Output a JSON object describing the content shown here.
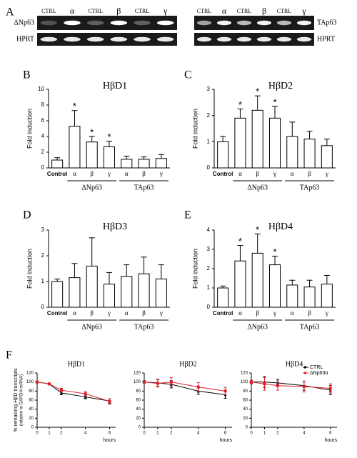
{
  "panel_labels": [
    "A",
    "B",
    "C",
    "D",
    "E",
    "F"
  ],
  "gel": {
    "left": {
      "lanes": [
        "CTRL",
        "α",
        "CTRL",
        "β",
        "CTRL",
        "γ"
      ],
      "rows": [
        "ΔNp63",
        "HPRT"
      ]
    },
    "right": {
      "lanes": [
        "CTRL",
        "α",
        "CTRL",
        "β",
        "CTRL",
        "γ"
      ],
      "rows": [
        "TAp63",
        "HPRT"
      ]
    }
  },
  "chart_data": [
    {
      "type": "bar",
      "title": "HβD1",
      "ylabel": "Fold induction",
      "categories": [
        "Control",
        "α",
        "β",
        "γ",
        "α",
        "β",
        "γ"
      ],
      "group_labels": [
        "ΔNp63",
        "TAp63"
      ],
      "values": [
        1.0,
        5.3,
        3.3,
        2.7,
        1.1,
        1.1,
        1.2
      ],
      "errors": [
        0.3,
        2.0,
        0.7,
        0.7,
        0.4,
        0.3,
        0.5
      ],
      "markers": [
        null,
        "*",
        "*",
        "*",
        null,
        null,
        null
      ],
      "ylim": [
        0,
        10
      ],
      "yticks": [
        0,
        2,
        4,
        6,
        8,
        10
      ],
      "color": "#ffffff"
    },
    {
      "type": "bar",
      "title": "HβD2",
      "ylabel": "Fold induction",
      "categories": [
        "Control",
        "α",
        "β",
        "γ",
        "α",
        "β",
        "γ"
      ],
      "group_labels": [
        "ΔNp63",
        "TAp63"
      ],
      "values": [
        1.0,
        1.9,
        2.2,
        1.9,
        1.2,
        1.1,
        0.85
      ],
      "errors": [
        0.2,
        0.35,
        0.55,
        0.45,
        0.55,
        0.3,
        0.25
      ],
      "markers": [
        null,
        "*",
        "*",
        "*",
        null,
        null,
        null
      ],
      "ylim": [
        0,
        3
      ],
      "yticks": [
        0,
        1,
        2,
        3
      ],
      "color": "#ffffff"
    },
    {
      "type": "bar",
      "title": "HβD3",
      "ylabel": "Fold induction",
      "categories": [
        "Control",
        "α",
        "β",
        "γ",
        "α",
        "β",
        "γ"
      ],
      "group_labels": [
        "ΔNp63",
        "TAp63"
      ],
      "values": [
        1.0,
        1.15,
        1.6,
        0.9,
        1.2,
        1.3,
        1.1
      ],
      "errors": [
        0.1,
        0.55,
        1.1,
        0.45,
        0.45,
        0.65,
        0.55
      ],
      "markers": [
        null,
        null,
        null,
        null,
        null,
        null,
        null
      ],
      "ylim": [
        0,
        3
      ],
      "yticks": [
        0,
        1,
        2,
        3
      ],
      "color": "#ffffff"
    },
    {
      "type": "bar",
      "title": "HβD4",
      "ylabel": "Fold induction",
      "categories": [
        "Control",
        "α",
        "β",
        "γ",
        "α",
        "β",
        "γ"
      ],
      "group_labels": [
        "ΔNp63",
        "TAp63"
      ],
      "values": [
        1.0,
        2.4,
        2.8,
        2.2,
        1.15,
        1.05,
        1.2
      ],
      "errors": [
        0.1,
        0.8,
        1.0,
        0.45,
        0.25,
        0.35,
        0.45
      ],
      "markers": [
        null,
        "*",
        "*",
        "*",
        null,
        null,
        null
      ],
      "ylim": [
        0,
        4
      ],
      "yticks": [
        0,
        1,
        2,
        3,
        4
      ],
      "color": "#ffffff"
    },
    {
      "type": "line",
      "title": "HβD1",
      "ylabel": "% remaining HβD transcripts",
      "ylabel2": "(relative to GAPDH mRNA)",
      "xlabel": "hours",
      "x": [
        0,
        1,
        2,
        4,
        6
      ],
      "xlim": [
        0,
        6.5
      ],
      "xticks": [
        0,
        1,
        2,
        4,
        6
      ],
      "ylim": [
        0,
        120
      ],
      "yticks": [
        0,
        20,
        40,
        60,
        80,
        100,
        120
      ],
      "series": [
        {
          "name": "CTRL",
          "color": "#000000",
          "values": [
            100,
            96,
            76,
            67,
            58
          ],
          "errors": [
            2,
            2,
            4,
            4,
            5
          ]
        },
        {
          "name": "ΔNp63α",
          "color": "#e0202a",
          "values": [
            100,
            96,
            82,
            74,
            57
          ],
          "errors": [
            2,
            2,
            4,
            5,
            6
          ]
        }
      ]
    },
    {
      "type": "line",
      "title": "HβD2",
      "xlabel": "hours",
      "x": [
        0,
        1,
        2,
        4,
        6
      ],
      "xlim": [
        0,
        6.5
      ],
      "xticks": [
        0,
        1,
        2,
        4,
        6
      ],
      "ylim": [
        0,
        120
      ],
      "yticks": [
        0,
        20,
        40,
        60,
        80,
        100,
        120
      ],
      "series": [
        {
          "name": "CTRL",
          "color": "#000000",
          "values": [
            100,
            98,
            95,
            80,
            72
          ],
          "errors": [
            3,
            8,
            8,
            7,
            8
          ]
        },
        {
          "name": "ΔNp63α",
          "color": "#e0202a",
          "values": [
            100,
            97,
            100,
            89,
            80
          ],
          "errors": [
            3,
            8,
            10,
            10,
            8
          ]
        }
      ]
    },
    {
      "type": "line",
      "title": "HβD4",
      "legend": "upper right",
      "xlabel": "hours",
      "x": [
        0,
        1,
        2,
        4,
        6
      ],
      "xlim": [
        0,
        6.5
      ],
      "xticks": [
        0,
        1,
        2,
        4,
        6
      ],
      "ylim": [
        0,
        120
      ],
      "yticks": [
        0,
        20,
        40,
        60,
        80,
        100,
        120
      ],
      "series": [
        {
          "name": "CTRL",
          "color": "#000000",
          "values": [
            100,
            100,
            98,
            92,
            82
          ],
          "errors": [
            4,
            12,
            8,
            10,
            10
          ]
        },
        {
          "name": "ΔNp63α",
          "color": "#e0202a",
          "values": [
            100,
            96,
            92,
            90,
            86
          ],
          "errors": [
            4,
            14,
            10,
            12,
            10
          ]
        }
      ]
    }
  ]
}
